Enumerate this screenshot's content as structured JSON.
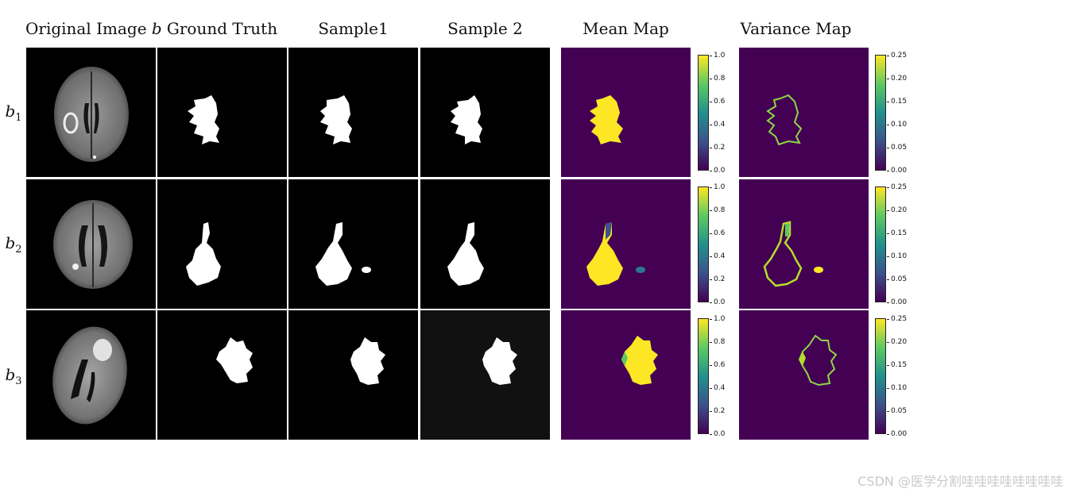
{
  "columns": {
    "original": "Original Image ",
    "original_var": "b",
    "ground_truth": "Ground Truth",
    "sample1": "Sample1",
    "sample2": "Sample 2",
    "mean_map": "Mean Map",
    "variance_map": "Variance Map"
  },
  "rows": [
    {
      "base": "b",
      "sub": "1"
    },
    {
      "base": "b",
      "sub": "2"
    },
    {
      "base": "b",
      "sub": "3"
    }
  ],
  "mean_colorbar": {
    "colormap": "viridis",
    "range": [
      0.0,
      1.0
    ],
    "ticks": [
      "1.0",
      "0.8",
      "0.6",
      "0.4",
      "0.2",
      "0.0"
    ]
  },
  "variance_colorbar": {
    "colormap": "viridis",
    "range": [
      0.0,
      0.25
    ],
    "ticks": [
      "0.25",
      "0.20",
      "0.15",
      "0.10",
      "0.05",
      "0.00"
    ]
  },
  "colors": {
    "viridis_low": "#440154",
    "viridis_high": "#fde725",
    "mask": "#ffffff",
    "background": "#000000"
  },
  "watermark": "CSDN @医学分割哇哇哇哇哇哇哇哇"
}
